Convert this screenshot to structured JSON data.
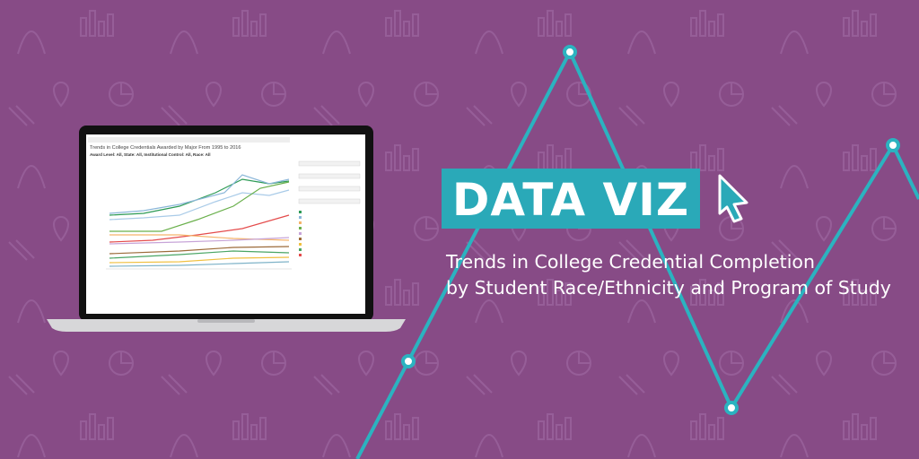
{
  "banner": {
    "title": "DATA VIZ",
    "subtitle_lines": [
      "Trends in College Credential Completion",
      "by Student Race/Ethnicity and Program of Study"
    ]
  },
  "screen": {
    "chart_title": "Trends in College Credentials Awarded by Major From 1995 to 2016",
    "filters": "Award Level: All, State: All, Institutional Control: All, Race: All"
  }
}
